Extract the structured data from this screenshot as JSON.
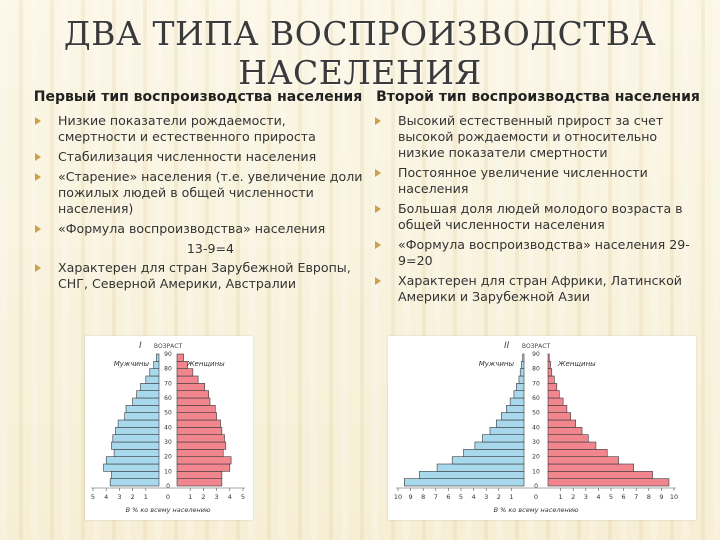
{
  "title": "ДВА ТИПА ВОСПРОИЗВОДСТВА НАСЕЛЕНИЯ",
  "left_column": {
    "heading": "Первый тип воспроизводства населения",
    "items": [
      "Низкие показатели рождаемости, смертности и естественного прироста",
      "Стабилизация численности населения",
      "«Старение» населения (т.е. увеличение доли пожилых людей в общей численности населения)",
      "«Формула воспроизводства» населения",
      "Характерен для стран Зарубежной Европы, СНГ, Северной Америки, Австралии"
    ],
    "formula": "13-9=4"
  },
  "right_column": {
    "heading": "Второй тип воспроизводства населения",
    "items": [
      "Высокий естественный прирост за счет высокой рождаемости и относительно низкие показатели смертности",
      "Постоянное увеличение численности населения",
      "Большая доля людей молодого возраста в общей численности населения",
      "«Формула воспроизводства» населения 29-9=20",
      "Характерен для стран Африки, Латинской Америки и Зарубежной Азии"
    ]
  },
  "colors": {
    "male": "#a8d8ec",
    "female": "#f2868f",
    "bullet": "#c9a24a"
  },
  "chart_data": [
    {
      "type": "bar",
      "subtype": "population-pyramid",
      "figure_label": "I",
      "axis_title": "ВОЗРАСТ",
      "left_label": "Мужчины",
      "right_label": "Женщины",
      "xlabel": "В % ко всему населению",
      "age_ticks": [
        "0",
        "10",
        "20",
        "30",
        "40",
        "50",
        "60",
        "70",
        "80",
        "90"
      ],
      "x_ticks_left": [
        "5",
        "4",
        "3",
        "2",
        "1"
      ],
      "x_ticks_right": [
        "1",
        "2",
        "3",
        "4",
        "5"
      ],
      "xlim": [
        0,
        5
      ],
      "series": [
        {
          "name": "Мужчины",
          "values": [
            3.7,
            3.6,
            4.2,
            4.0,
            3.4,
            3.6,
            3.5,
            3.3,
            3.1,
            2.6,
            2.5,
            2.0,
            1.7,
            1.4,
            1.0,
            0.7,
            0.4,
            0.2
          ]
        },
        {
          "name": "Женщины",
          "values": [
            3.4,
            3.4,
            4.0,
            4.1,
            3.5,
            3.7,
            3.6,
            3.4,
            3.3,
            3.0,
            2.9,
            2.5,
            2.4,
            2.1,
            1.6,
            1.2,
            0.8,
            0.5
          ]
        }
      ]
    },
    {
      "type": "bar",
      "subtype": "population-pyramid",
      "figure_label": "II",
      "axis_title": "ВОЗРАСТ",
      "left_label": "Мужчины",
      "right_label": "Женщины",
      "xlabel": "В % ко всему населению",
      "age_ticks": [
        "0",
        "10",
        "20",
        "30",
        "40",
        "50",
        "60",
        "70",
        "80",
        "90"
      ],
      "x_ticks_left": [
        "10",
        "9",
        "8",
        "7",
        "6",
        "5",
        "4",
        "3",
        "2",
        "1"
      ],
      "x_ticks_right": [
        "1",
        "2",
        "3",
        "4",
        "5",
        "6",
        "7",
        "8",
        "9",
        "10"
      ],
      "xlim": [
        0,
        10
      ],
      "series": [
        {
          "name": "Мужчины",
          "values": [
            9.5,
            8.3,
            6.9,
            5.7,
            4.8,
            3.9,
            3.3,
            2.7,
            2.2,
            1.8,
            1.4,
            1.1,
            0.8,
            0.6,
            0.4,
            0.3,
            0.2,
            0.1
          ]
        },
        {
          "name": "Женщины",
          "values": [
            9.6,
            8.3,
            6.8,
            5.6,
            4.7,
            3.8,
            3.2,
            2.7,
            2.2,
            1.8,
            1.5,
            1.2,
            0.9,
            0.7,
            0.5,
            0.3,
            0.2,
            0.1
          ]
        }
      ]
    }
  ]
}
